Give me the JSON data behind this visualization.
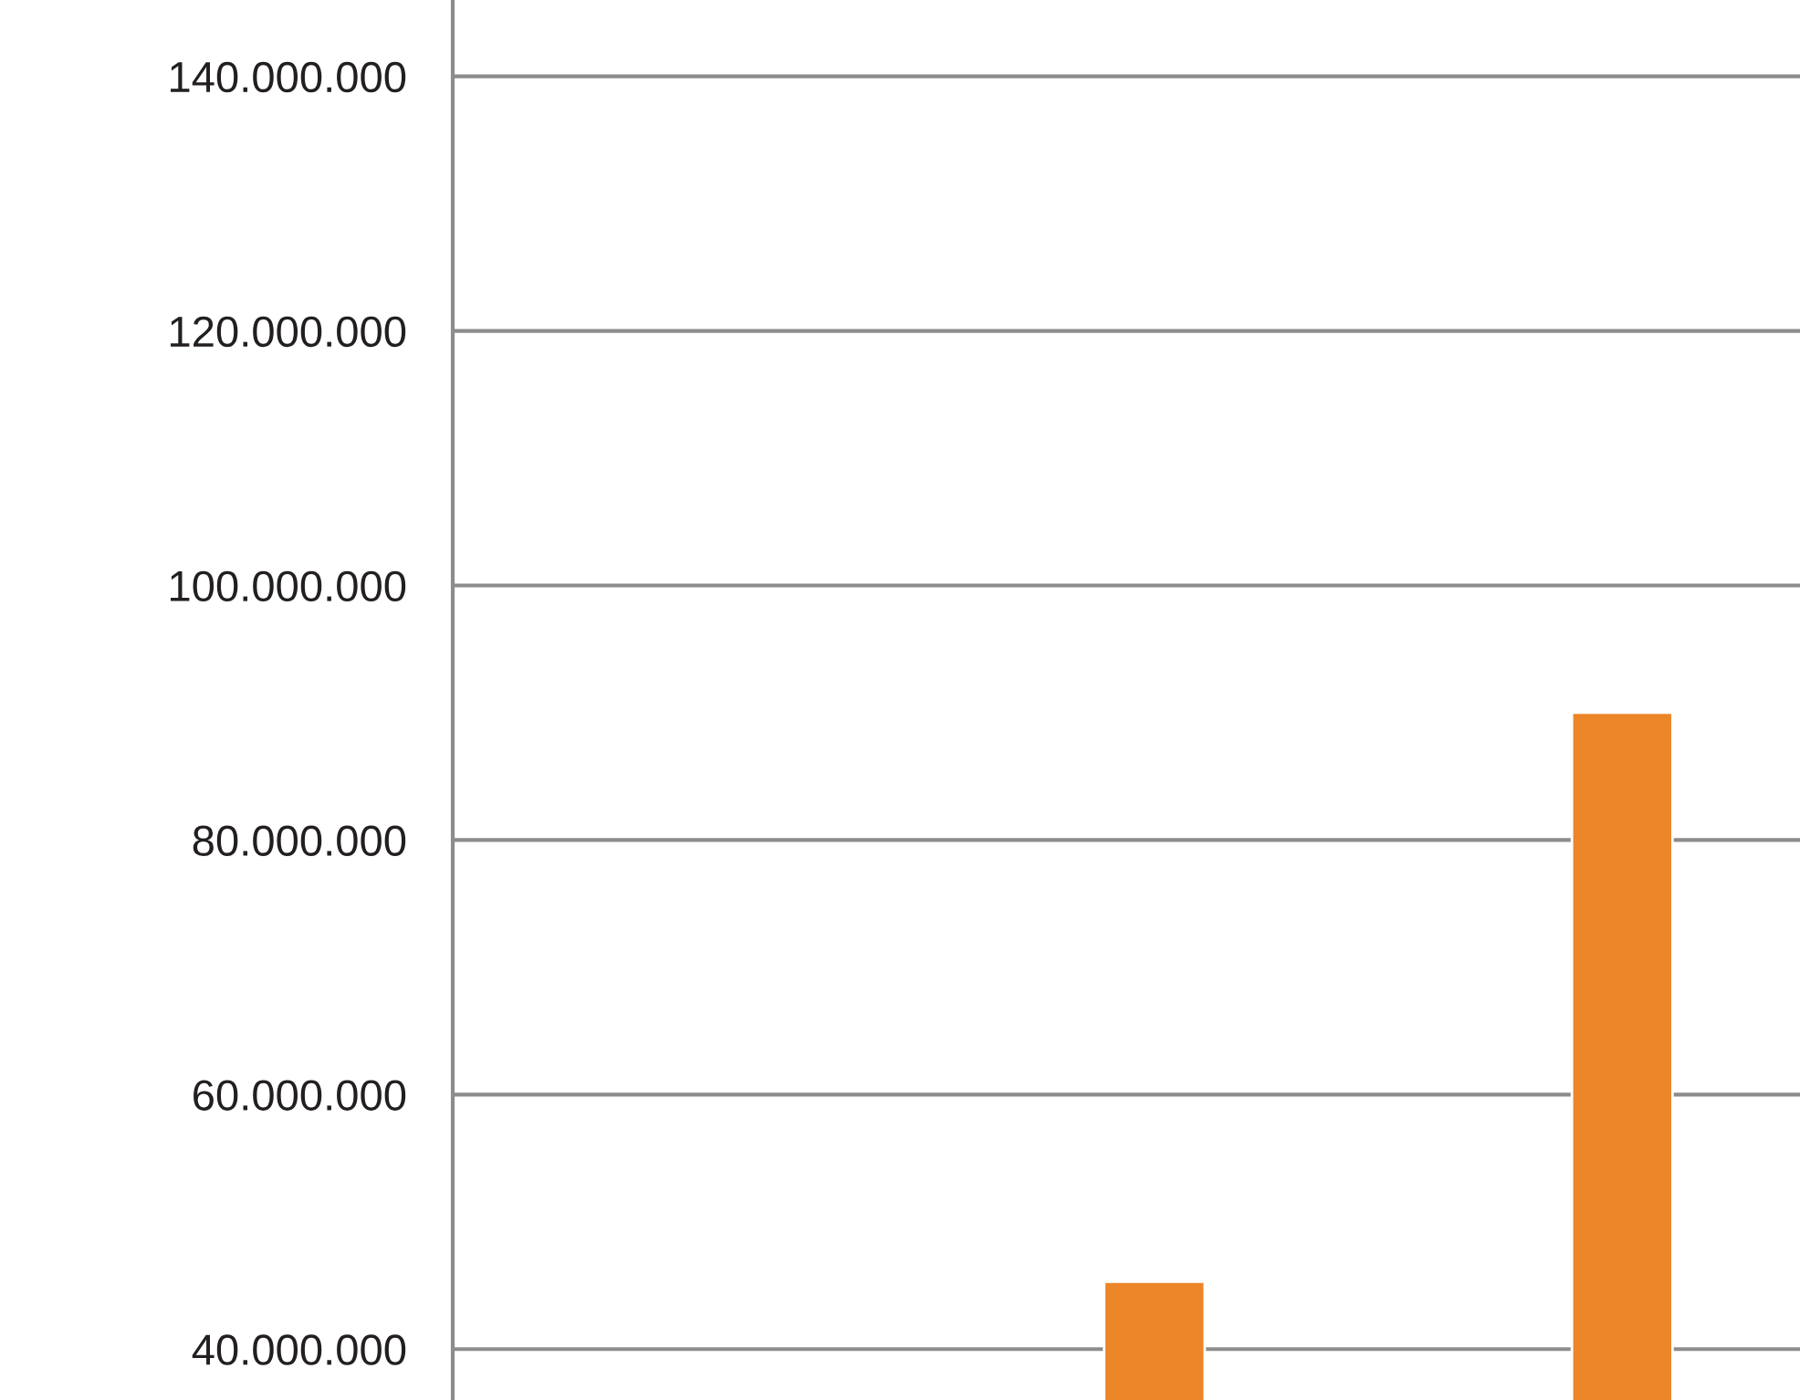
{
  "chart_data": {
    "type": "bar",
    "categories": [
      null,
      null,
      null
    ],
    "values": [
      null,
      45300000,
      90000000
    ],
    "color": "#ec8629",
    "ylim": [
      36000000,
      146000000
    ],
    "yticks": [
      {
        "value": 40000000,
        "label": "40.000.000"
      },
      {
        "value": 60000000,
        "label": "60.000.000"
      },
      {
        "value": 80000000,
        "label": "80.000.000"
      },
      {
        "value": 100000000,
        "label": "100.000.000"
      },
      {
        "value": 120000000,
        "label": "120.000.000"
      },
      {
        "value": 140000000,
        "label": "140.000.000"
      }
    ],
    "grid": "y",
    "tick_labels": "y",
    "legend": false
  }
}
